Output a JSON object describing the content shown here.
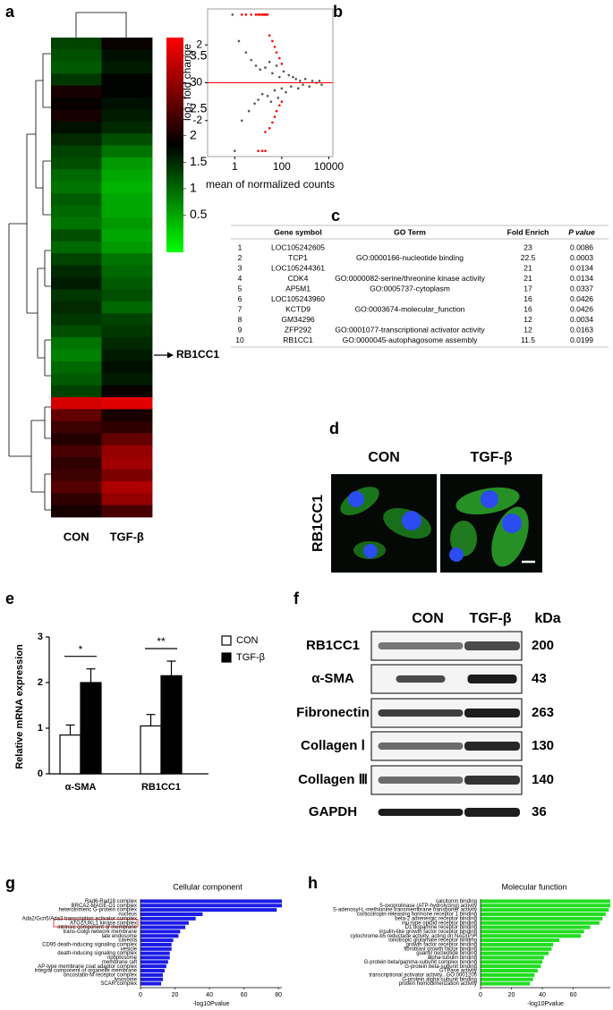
{
  "panel_labels": [
    "a",
    "b",
    "c",
    "d",
    "e",
    "f",
    "g",
    "h"
  ],
  "chart_data": [
    {
      "type": "heatmap",
      "columns": [
        "CON",
        "TGF-β"
      ],
      "annotation": "RB1CC1",
      "clim": [
        -0.2,
        3.85
      ],
      "cticks": [
        0.5,
        1,
        1.5,
        2,
        2.5,
        3,
        3.5
      ],
      "colors": [
        "#00ff00",
        "#000000",
        "#ff0000"
      ],
      "values": [
        [
          1.3,
          1.9
        ],
        [
          1.2,
          1.7
        ],
        [
          1.1,
          1.6
        ],
        [
          1.4,
          1.8
        ],
        [
          2.0,
          1.8
        ],
        [
          1.9,
          1.7
        ],
        [
          2.0,
          1.6
        ],
        [
          1.7,
          1.5
        ],
        [
          1.5,
          1.2
        ],
        [
          1.3,
          0.9
        ],
        [
          1.2,
          0.6
        ],
        [
          1.0,
          0.5
        ],
        [
          0.9,
          0.4
        ],
        [
          1.1,
          0.5
        ],
        [
          1.0,
          0.5
        ],
        [
          0.9,
          0.6
        ],
        [
          1.2,
          0.5
        ],
        [
          1.0,
          0.6
        ],
        [
          1.3,
          0.9
        ],
        [
          1.5,
          1.0
        ],
        [
          1.6,
          1.1
        ],
        [
          1.4,
          1.2
        ],
        [
          1.5,
          1.0
        ],
        [
          1.4,
          1.3
        ],
        [
          1.2,
          1.4
        ],
        [
          0.9,
          1.5
        ],
        [
          0.8,
          1.6
        ],
        [
          1.0,
          1.7
        ],
        [
          1.1,
          1.6
        ],
        [
          1.3,
          1.9
        ],
        [
          3.5,
          3.6
        ],
        [
          2.6,
          2.0
        ],
        [
          2.3,
          2.2
        ],
        [
          2.1,
          2.6
        ],
        [
          2.4,
          3.0
        ],
        [
          2.2,
          3.1
        ],
        [
          2.3,
          2.8
        ],
        [
          2.5,
          3.2
        ],
        [
          2.2,
          3.0
        ],
        [
          2.0,
          2.4
        ]
      ]
    },
    {
      "type": "scatter",
      "xlabel": "mean of normalized counts",
      "ylabel": "log₂ fold change",
      "xscale": "log",
      "xlim": [
        0.07,
        15000
      ],
      "ylim": [
        -3.9,
        3.9
      ],
      "xticks": [
        1,
        100,
        10000
      ],
      "yticks": [
        -2,
        0,
        2
      ],
      "hline": 0,
      "hline_color": "#ff0000",
      "series": [
        {
          "color": "#555555",
          "x": [
            0.8,
            1,
            1.5,
            2,
            3,
            4,
            5,
            7,
            8,
            10,
            12,
            15,
            20,
            25,
            30,
            35,
            40,
            50,
            60,
            70,
            80,
            100,
            120,
            150,
            200,
            250,
            300,
            400,
            500,
            600,
            800,
            1000,
            1500,
            2000,
            3000,
            4000,
            5000
          ],
          "y": [
            3.6,
            -3.6,
            2.2,
            -2.0,
            1.6,
            -1.5,
            1.2,
            -1.1,
            0.9,
            -0.9,
            0.7,
            -0.6,
            0.8,
            -0.7,
            1.1,
            -1.0,
            0.5,
            -0.4,
            0.9,
            -0.8,
            0.3,
            -0.3,
            0.6,
            -0.5,
            0.4,
            -0.2,
            0.3,
            0.2,
            -0.3,
            0.1,
            -0.1,
            0.2,
            -0.2,
            0.1,
            0.0,
            0.1,
            -0.1
          ]
        },
        {
          "color": "#ff0000",
          "x": [
            2,
            3,
            5,
            8,
            10,
            12,
            15,
            18,
            20,
            22,
            25,
            10,
            15,
            20,
            30,
            40,
            50,
            60,
            80,
            100,
            20,
            30,
            40,
            50,
            60,
            80,
            100
          ],
          "y": [
            3.6,
            3.6,
            3.6,
            3.6,
            3.6,
            3.6,
            3.6,
            3.6,
            3.6,
            3.6,
            3.6,
            -3.6,
            -3.6,
            -3.6,
            2.5,
            2.2,
            1.9,
            1.6,
            1.3,
            1.0,
            -2.6,
            -2.4,
            -2.1,
            -1.8,
            -1.5,
            -1.2,
            -1.0
          ]
        }
      ]
    },
    {
      "type": "bar",
      "ylabel": "Relative mRNA expression",
      "categories": [
        "α-SMA",
        "RB1CC1"
      ],
      "ylim": [
        0,
        3
      ],
      "yticks": [
        0,
        1,
        2,
        3
      ],
      "annotations": [
        "*",
        "**"
      ],
      "series": [
        {
          "name": "CON",
          "color": "#ffffff",
          "values": [
            0.85,
            1.05
          ],
          "errors": [
            0.22,
            0.25
          ]
        },
        {
          "name": "TGF-β",
          "color": "#000000",
          "values": [
            2.0,
            2.15
          ],
          "errors": [
            0.3,
            0.32
          ]
        }
      ]
    },
    {
      "type": "barh",
      "title": "Cellular component",
      "xlabel": "-log10Pvalue",
      "color": "#1c1ce6",
      "xlim": [
        0,
        82
      ],
      "xticks": [
        0,
        20,
        40,
        60,
        80
      ],
      "categories": [
        "Rad6-Rad18 complex",
        "BRCA2-MAGE-D1 complex",
        "heterotrimeric G-protein complex",
        "nucleus",
        "Ada2/Gcn5/Ada3 transcription activator complex",
        "ATG1/UKL1 kinase complex",
        "intrinsic component of membrane",
        "trans-Golgi network membrane",
        "late endosome",
        "caveola",
        "CD95 death-inducing signaling complex",
        "vesicle",
        "death-inducing signaling complex",
        "ripoptosome",
        "membrane raft",
        "AP-type membrane coat adaptor complex",
        "integral component of organelle membrane",
        "oncostatin-M receptor complex",
        "lysosome",
        "SCAR complex"
      ],
      "values": [
        82,
        82,
        79,
        36,
        32,
        28,
        26,
        23,
        22,
        19,
        18,
        18,
        17,
        17,
        16,
        15,
        14,
        13,
        13,
        12
      ]
    },
    {
      "type": "barh",
      "title": "Molecular function",
      "xlabel": "-log10Pvalue",
      "color": "#22dd22",
      "xlim": [
        0,
        84
      ],
      "xticks": [
        0,
        20,
        40,
        60
      ],
      "categories": [
        "calcitonin binding",
        "5-oxoprolinase (ATP-hydrolyzing) activity",
        "S-adenosyl-L-methionine transmembrane transporter activity",
        "corticotropin-releasing hormone receptor 1 binding",
        "beta-2 adrenergic receptor binding",
        "mu-type opioid receptor binding",
        "D1 dopamine receptor binding",
        "insulin-like growth factor receptor binding",
        "cytochrome-b5 reductase activity, acting on NAD(P)H",
        "ionotropic glutamate receptor binding",
        "growth factor receptor binding",
        "fibroblast growth factor binding",
        "guanyl nucleotide binding",
        "alpha-tubulin binding",
        "G-protein beta/gamma-subunit complex binding",
        "G-protein beta-subunit binding",
        "GTPase activity",
        "transcriptional activator activity...GO:0001205",
        "G-protein alpha-subunit binding",
        "protein homodimerization activity"
      ],
      "values": [
        84,
        84,
        83,
        81,
        79,
        77,
        71,
        67,
        65,
        51,
        47,
        46,
        44,
        41,
        40,
        39,
        37,
        35,
        34,
        32
      ]
    }
  ],
  "table": {
    "header": [
      "Gene symbol",
      "GO Term",
      "Fold Enrich",
      "P value"
    ],
    "rows": [
      [
        1,
        "LOC105242605",
        null,
        23,
        0.0086
      ],
      [
        2,
        "TCP1",
        "GO:0000166-nucleotide binding",
        22.5,
        0.0003
      ],
      [
        3,
        "LOC105244361",
        null,
        21,
        0.0134
      ],
      [
        4,
        "CDK4",
        "GO:0000082-serine/threonine kinase activity",
        21,
        0.0134
      ],
      [
        5,
        "AP5M1",
        "GO:0005737-cytoplasm",
        17,
        0.0337
      ],
      [
        6,
        "LOC105243960",
        null,
        16,
        0.0426
      ],
      [
        7,
        "KCTD9",
        "GO:0003674-molecular_function",
        16,
        0.0426
      ],
      [
        8,
        "GM34296",
        null,
        12,
        0.0034
      ],
      [
        9,
        "ZFP292",
        "GO:0001077-transcriptional activator activity",
        12,
        0.0163
      ],
      [
        10,
        "RB1CC1",
        "GO:0000045-autophagosome assembly",
        11.5,
        0.0199
      ]
    ]
  },
  "micrograph": {
    "columns": [
      "CON",
      "TGF-β"
    ],
    "row_label": "RB1CC1"
  },
  "blot": {
    "columns": [
      "CON",
      "TGF-β",
      "kDa"
    ],
    "rows": [
      {
        "label": "RB1CC1",
        "kda": 200
      },
      {
        "label": "α-SMA",
        "kda": 43
      },
      {
        "label": "Fibronectin",
        "kda": 263
      },
      {
        "label": "Collagen Ⅰ",
        "kda": 130
      },
      {
        "label": "Collagen Ⅲ",
        "kda": 140
      },
      {
        "label": "GAPDH",
        "kda": 36
      }
    ]
  }
}
